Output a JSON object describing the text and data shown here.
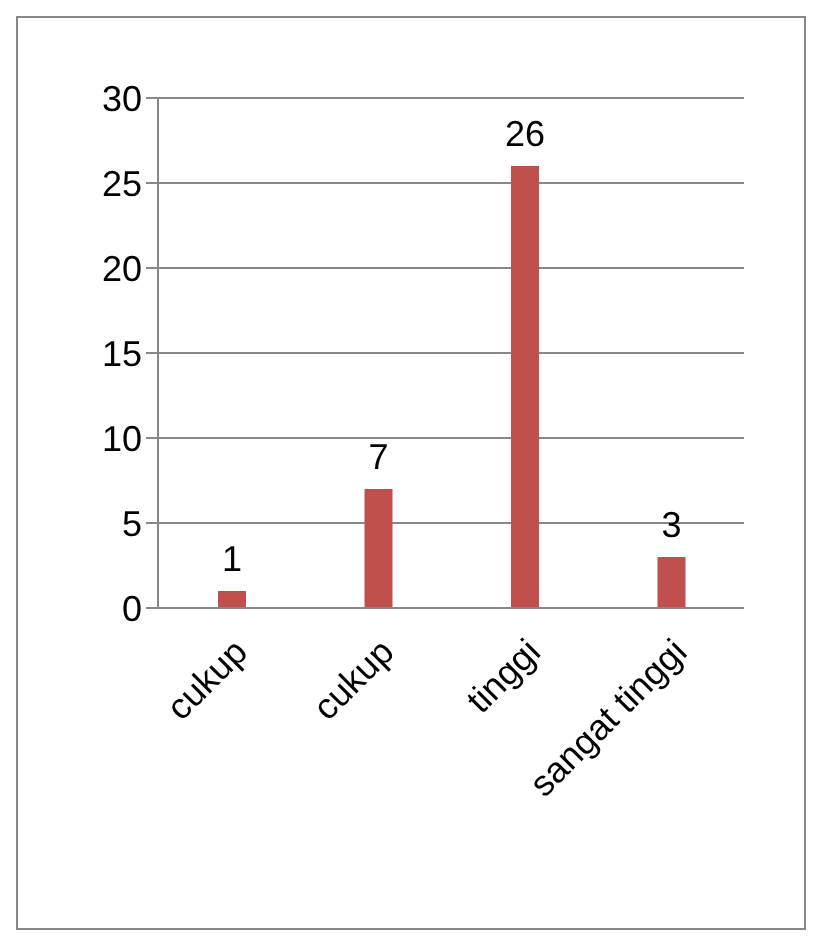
{
  "chart_data": {
    "type": "bar",
    "categories": [
      "cukup",
      "cukup",
      "tinggi",
      "sangat tinggi"
    ],
    "values": [
      1,
      7,
      26,
      3
    ],
    "color": "#c0504d",
    "ylim": [
      0,
      30
    ],
    "yticks": [
      0,
      5,
      10,
      15,
      20,
      25,
      30
    ],
    "grid": "y",
    "data_labels": true
  }
}
